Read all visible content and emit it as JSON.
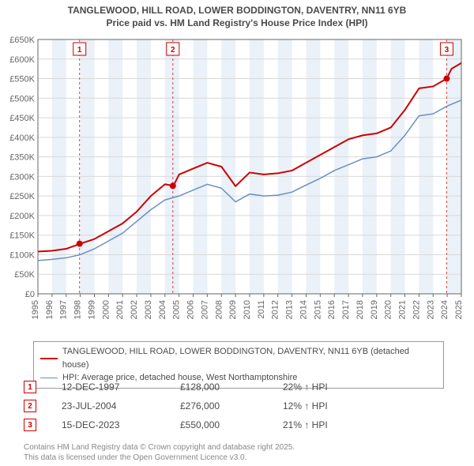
{
  "title": {
    "line1": "TANGLEWOOD, HILL ROAD, LOWER BODDINGTON, DAVENTRY, NN11 6YB",
    "line2": "Price paid vs. HM Land Registry's House Price Index (HPI)",
    "fontsize": 12,
    "color": "#4a4a4a"
  },
  "chart": {
    "type": "line",
    "background_color": "#ffffff",
    "plot_bg": "#ffffff",
    "shaded_band_color": "#eaf1f8",
    "grid_color": "#d9d9d9",
    "axis_color": "#666666",
    "tick_label_color": "#666666",
    "tick_fontsize": 11,
    "xlim": [
      1995,
      2025
    ],
    "ylim": [
      0,
      650000
    ],
    "ytick_step": 50000,
    "xtick_step": 1,
    "y_ticks": [
      "£0",
      "£50K",
      "£100K",
      "£150K",
      "£200K",
      "£250K",
      "£300K",
      "£350K",
      "£400K",
      "£450K",
      "£500K",
      "£550K",
      "£600K",
      "£650K"
    ],
    "x_ticks": [
      "1995",
      "1996",
      "1997",
      "1998",
      "1999",
      "2000",
      "2001",
      "2002",
      "2003",
      "2004",
      "2005",
      "2006",
      "2007",
      "2008",
      "2009",
      "2010",
      "2011",
      "2012",
      "2013",
      "2014",
      "2015",
      "2016",
      "2017",
      "2018",
      "2019",
      "2020",
      "2021",
      "2022",
      "2023",
      "2024",
      "2025"
    ],
    "marker_line_color": "#d04040",
    "marker_line_dash": "3,3",
    "markers": [
      {
        "id": "1",
        "x_year": 1997.95,
        "y_price": 128000
      },
      {
        "id": "2",
        "x_year": 2004.56,
        "y_price": 276000
      },
      {
        "id": "3",
        "x_year": 2023.96,
        "y_price": 550000
      }
    ],
    "series": [
      {
        "name": "price_paid",
        "label": "TANGLEWOOD, HILL ROAD, LOWER BODDINGTON, DAVENTRY, NN11 6YB (detached house)",
        "color": "#cc0000",
        "line_width": 2,
        "points": [
          [
            1995,
            108000
          ],
          [
            1996,
            110000
          ],
          [
            1997,
            115000
          ],
          [
            1998,
            128000
          ],
          [
            1999,
            140000
          ],
          [
            2000,
            160000
          ],
          [
            2001,
            180000
          ],
          [
            2002,
            210000
          ],
          [
            2003,
            250000
          ],
          [
            2004,
            280000
          ],
          [
            2004.6,
            276000
          ],
          [
            2005,
            305000
          ],
          [
            2006,
            320000
          ],
          [
            2007,
            335000
          ],
          [
            2008,
            325000
          ],
          [
            2009,
            275000
          ],
          [
            2010,
            310000
          ],
          [
            2011,
            305000
          ],
          [
            2012,
            308000
          ],
          [
            2013,
            315000
          ],
          [
            2014,
            335000
          ],
          [
            2015,
            355000
          ],
          [
            2016,
            375000
          ],
          [
            2017,
            395000
          ],
          [
            2018,
            405000
          ],
          [
            2019,
            410000
          ],
          [
            2020,
            425000
          ],
          [
            2021,
            470000
          ],
          [
            2022,
            525000
          ],
          [
            2023,
            530000
          ],
          [
            2023.96,
            550000
          ],
          [
            2024.3,
            575000
          ],
          [
            2025,
            590000
          ]
        ],
        "sale_markers": [
          {
            "x": 1997.95,
            "y": 128000
          },
          {
            "x": 2004.56,
            "y": 276000
          },
          {
            "x": 2023.96,
            "y": 550000
          }
        ],
        "sale_marker_color": "#cc0000",
        "sale_marker_radius": 4
      },
      {
        "name": "hpi",
        "label": "HPI: Average price, detached house, West Northamptonshire",
        "color": "#6a8fc4",
        "line_width": 1.5,
        "points": [
          [
            1995,
            85000
          ],
          [
            1996,
            88000
          ],
          [
            1997,
            92000
          ],
          [
            1998,
            100000
          ],
          [
            1999,
            115000
          ],
          [
            2000,
            135000
          ],
          [
            2001,
            155000
          ],
          [
            2002,
            185000
          ],
          [
            2003,
            215000
          ],
          [
            2004,
            240000
          ],
          [
            2005,
            250000
          ],
          [
            2006,
            265000
          ],
          [
            2007,
            280000
          ],
          [
            2008,
            270000
          ],
          [
            2009,
            235000
          ],
          [
            2010,
            255000
          ],
          [
            2011,
            250000
          ],
          [
            2012,
            252000
          ],
          [
            2013,
            260000
          ],
          [
            2014,
            278000
          ],
          [
            2015,
            295000
          ],
          [
            2016,
            315000
          ],
          [
            2017,
            330000
          ],
          [
            2018,
            345000
          ],
          [
            2019,
            350000
          ],
          [
            2020,
            365000
          ],
          [
            2021,
            405000
          ],
          [
            2022,
            455000
          ],
          [
            2023,
            460000
          ],
          [
            2024,
            480000
          ],
          [
            2025,
            495000
          ]
        ]
      }
    ]
  },
  "legend": {
    "border_color": "#999999",
    "items": [
      {
        "color": "#cc0000",
        "width": 2,
        "label": "TANGLEWOOD, HILL ROAD, LOWER BODDINGTON, DAVENTRY, NN11 6YB (detached house)"
      },
      {
        "color": "#6a8fc4",
        "width": 1.5,
        "label": "HPI: Average price, detached house, West Northamptonshire"
      }
    ]
  },
  "marker_table": {
    "box_border": "#cc0000",
    "box_text": "#cc0000",
    "rows": [
      {
        "id": "1",
        "date": "12-DEC-1997",
        "price": "£128,000",
        "delta": "22% ↑ HPI"
      },
      {
        "id": "2",
        "date": "23-JUL-2004",
        "price": "£276,000",
        "delta": "12% ↑ HPI"
      },
      {
        "id": "3",
        "date": "15-DEC-2023",
        "price": "£550,000",
        "delta": "21% ↑ HPI"
      }
    ]
  },
  "footer": {
    "line1": "Contains HM Land Registry data © Crown copyright and database right 2025.",
    "line2": "This data is licensed under the Open Government Licence v3.0.",
    "color": "#888888",
    "fontsize": 10
  }
}
